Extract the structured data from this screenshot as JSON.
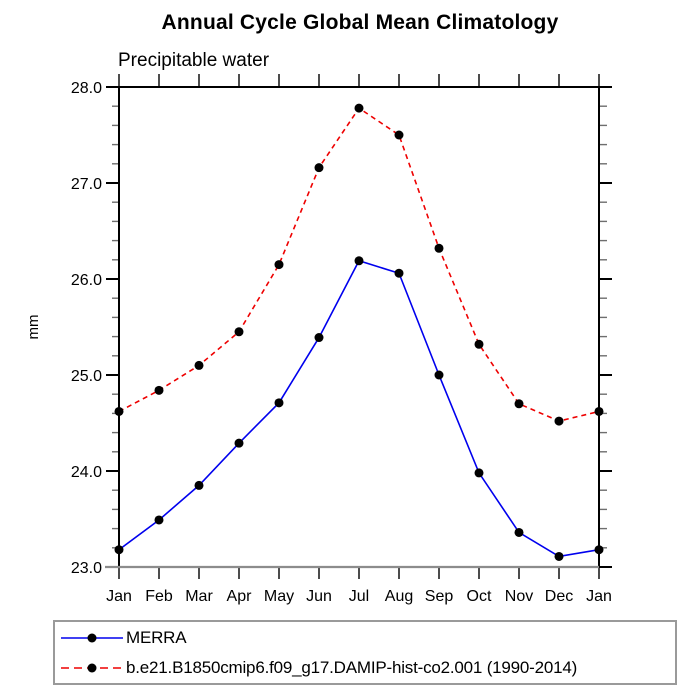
{
  "title": "Annual Cycle Global Mean Climatology",
  "subtitle": "Precipitable water",
  "chart_data": {
    "type": "line",
    "title": "Annual Cycle Global Mean Climatology",
    "subtitle": "Precipitable water",
    "ylabel": "mm",
    "xlabel": "",
    "categories": [
      "Jan",
      "Feb",
      "Mar",
      "Apr",
      "May",
      "Jun",
      "Jul",
      "Aug",
      "Sep",
      "Oct",
      "Nov",
      "Dec",
      "Jan"
    ],
    "series": [
      {
        "name": "MERRA",
        "line_style": "solid",
        "line_color": "#0000ee",
        "marker": "filled-circle",
        "marker_color": "#000000",
        "values": [
          23.18,
          23.49,
          23.85,
          24.29,
          24.71,
          25.39,
          26.19,
          26.06,
          25.0,
          23.98,
          23.36,
          23.11,
          23.18
        ]
      },
      {
        "name": "b.e21.B1850cmip6.f09_g17.DAMIP-hist-co2.001 (1990-2014)",
        "line_style": "dashed",
        "line_color": "#ee0000",
        "marker": "filled-circle",
        "marker_color": "#000000",
        "values": [
          24.62,
          24.84,
          25.1,
          25.45,
          26.15,
          27.16,
          27.78,
          27.5,
          26.32,
          25.32,
          24.7,
          24.52,
          24.62
        ]
      }
    ],
    "ylim": [
      23.0,
      28.0
    ],
    "ytick_major_step": 1.0,
    "ytick_minor_step": 0.2,
    "ytick_labels": [
      "23.0",
      "24.0",
      "25.0",
      "26.0",
      "27.0",
      "28.0"
    ],
    "grid": false,
    "legend_position": "bottom-left",
    "axis_colors": {
      "left": "#000000",
      "top": "#000000",
      "right": "#000000",
      "bottom": "#8c8c8c",
      "minor_tick": "#6e6e6e",
      "major_tick": "#000000",
      "tick_label": "#000000"
    }
  }
}
